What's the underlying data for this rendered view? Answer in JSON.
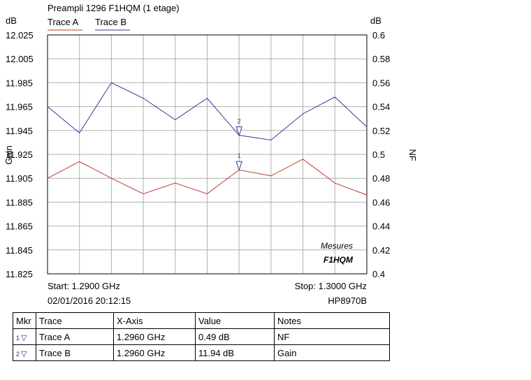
{
  "chart_data": {
    "type": "line",
    "title": "Preampli 1296 F1HQM (1 etage)",
    "x_unit": "GHz",
    "x": [
      1.29,
      1.291,
      1.292,
      1.293,
      1.294,
      1.295,
      1.296,
      1.297,
      1.298,
      1.299,
      1.3
    ],
    "left_axis": {
      "unit": "dB",
      "label": "Gain",
      "ylim": [
        11.825,
        12.025
      ],
      "ticks": [
        "12.025",
        "12.005",
        "11.985",
        "11.965",
        "11.945",
        "11.925",
        "11.905",
        "11.885",
        "11.865",
        "11.845",
        "11.825"
      ]
    },
    "right_axis": {
      "unit": "dB",
      "label": "NF",
      "ylim": [
        0.4,
        0.6
      ],
      "ticks": [
        "0.6",
        "0.58",
        "0.56",
        "0.54",
        "0.52",
        "0.5",
        "0.48",
        "0.46",
        "0.44",
        "0.42",
        "0.4"
      ]
    },
    "series": [
      {
        "name": "Trace A",
        "color": "#c0392b",
        "axis": "right",
        "values": [
          0.48,
          0.494,
          0.48,
          0.467,
          0.476,
          0.467,
          0.487,
          0.482,
          0.496,
          0.476,
          0.466
        ]
      },
      {
        "name": "Trace B",
        "color": "#2b3a9a",
        "axis": "left",
        "values": [
          11.965,
          11.943,
          11.985,
          11.972,
          11.954,
          11.972,
          11.941,
          11.937,
          11.959,
          11.973,
          11.948
        ]
      }
    ],
    "markers": [
      {
        "label": "1",
        "trace": "Trace A",
        "x": 1.296,
        "value": 0.487
      },
      {
        "label": "2",
        "trace": "Trace B",
        "x": 1.296,
        "value": 11.941
      }
    ],
    "annotations": {
      "line1": "Mesures",
      "line2": "F1HQM"
    },
    "grid": true
  },
  "footer": {
    "start": "Start: 1.2900 GHz",
    "stop": "Stop: 1.3000 GHz",
    "datetime": "02/01/2016 20:12:15",
    "instrument": "HP8970B"
  },
  "marker_table": {
    "headers": [
      "Mkr",
      "Trace",
      "X-Axis",
      "Value",
      "Notes"
    ],
    "rows": [
      {
        "mkr": "1",
        "icon": "marker-triangle-icon",
        "trace": "Trace A",
        "x": "1.2960 GHz",
        "value": "0.49 dB",
        "notes": "NF"
      },
      {
        "mkr": "2",
        "icon": "marker-triangle-icon",
        "trace": "Trace B",
        "x": "1.2960 GHz",
        "value": "11.94 dB",
        "notes": "Gain"
      }
    ]
  }
}
